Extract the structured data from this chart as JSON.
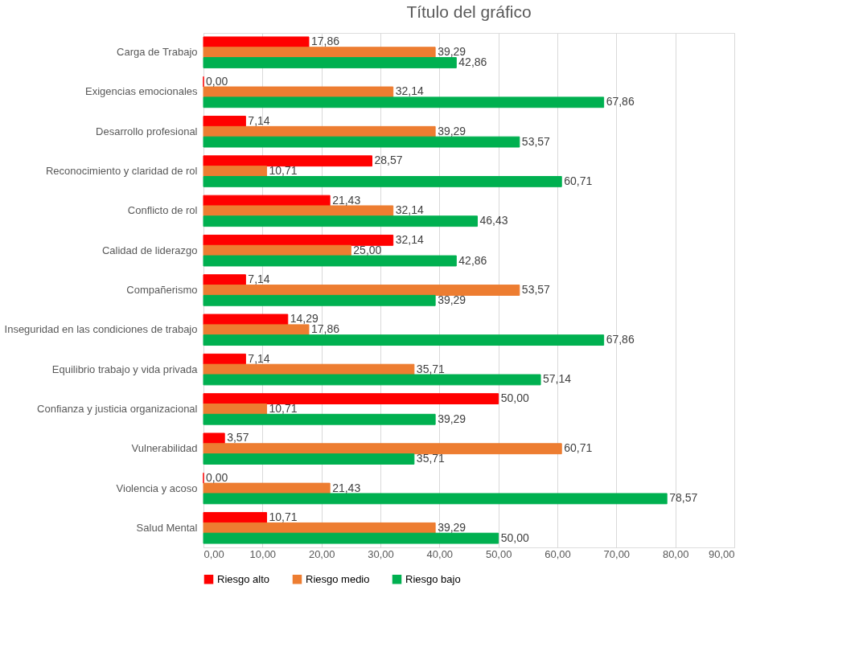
{
  "chart_data": {
    "type": "bar",
    "orientation": "horizontal",
    "title": "Título del gráfico",
    "categories": [
      "Carga de Trabajo",
      "Exigencias emocionales",
      "Desarrollo profesional",
      "Reconocimiento y claridad de rol",
      "Conflicto de rol",
      "Calidad de liderazgo",
      "Compañerismo",
      "Inseguridad en las condiciones de trabajo",
      "Equilibrio trabajo y vida privada",
      "Confianza y justicia organizacional",
      "Vulnerabilidad",
      "Violencia y acoso",
      "Salud Mental"
    ],
    "series": [
      {
        "name": "Riesgo alto",
        "color": "#ff0000",
        "values": [
          17.86,
          0.0,
          7.14,
          28.57,
          21.43,
          32.14,
          7.14,
          14.29,
          7.14,
          50.0,
          3.57,
          0.0,
          10.71
        ],
        "value_labels": [
          "17,86",
          "0,00",
          "7,14",
          "28,57",
          "21,43",
          "32,14",
          "7,14",
          "14,29",
          "7,14",
          "50,00",
          "3,57",
          "0,00",
          "10,71"
        ]
      },
      {
        "name": "Riesgo medio",
        "color": "#ed7d31",
        "values": [
          39.29,
          32.14,
          39.29,
          10.71,
          32.14,
          25.0,
          53.57,
          17.86,
          35.71,
          10.71,
          60.71,
          21.43,
          39.29
        ],
        "value_labels": [
          "39,29",
          "32,14",
          "39,29",
          "10,71",
          "32,14",
          "25,00",
          "53,57",
          "17,86",
          "35,71",
          "10,71",
          "60,71",
          "21,43",
          "39,29"
        ]
      },
      {
        "name": "Riesgo bajo",
        "color": "#00b050",
        "values": [
          42.86,
          67.86,
          53.57,
          60.71,
          46.43,
          42.86,
          39.29,
          67.86,
          57.14,
          39.29,
          35.71,
          78.57,
          50.0
        ],
        "value_labels": [
          "42,86",
          "67,86",
          "53,57",
          "60,71",
          "46,43",
          "42,86",
          "39,29",
          "67,86",
          "57,14",
          "39,29",
          "35,71",
          "78,57",
          "50,00"
        ]
      }
    ],
    "xlim": [
      0,
      90
    ],
    "xticks": [
      {
        "value": 0,
        "label": "0,00"
      },
      {
        "value": 10,
        "label": "10,00"
      },
      {
        "value": 20,
        "label": "20,00"
      },
      {
        "value": 30,
        "label": "30,00"
      },
      {
        "value": 40,
        "label": "40,00"
      },
      {
        "value": 50,
        "label": "50,00"
      },
      {
        "value": 60,
        "label": "60,00"
      },
      {
        "value": 70,
        "label": "70,00"
      },
      {
        "value": 80,
        "label": "80,00"
      },
      {
        "value": 90,
        "label": "90,00"
      }
    ],
    "grid": "x",
    "legend": "bottom"
  }
}
